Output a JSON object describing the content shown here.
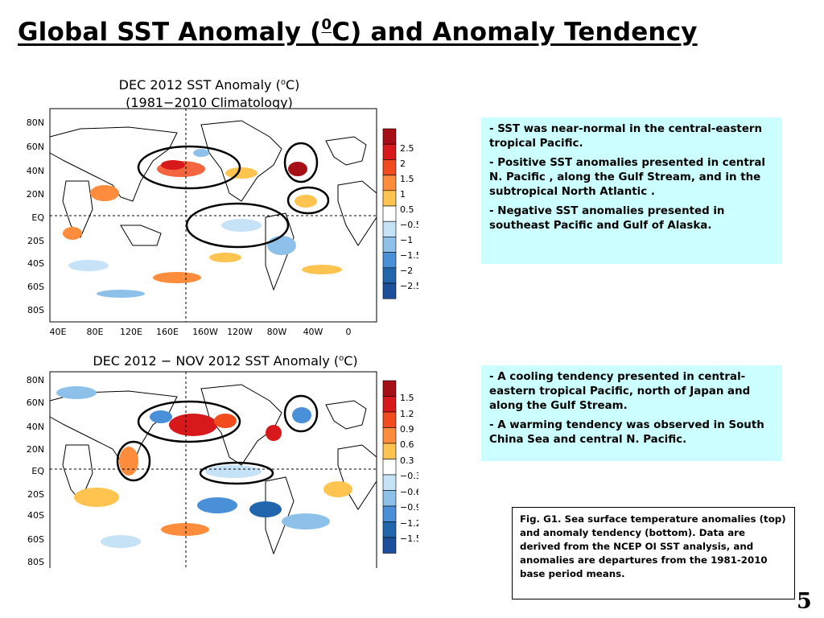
{
  "slide": {
    "title_part1": "Global SST Anomaly (",
    "title_superscript": "0",
    "title_part2": "C) and Anomaly Tendency",
    "page_number": "5"
  },
  "top_map": {
    "title_line1_prefix": "DEC 2012 SST Anomaly (",
    "title_line1_sup": "o",
    "title_line1_suffix": "C)",
    "title_line2": "(1981−2010 Climatology)",
    "lat_labels": [
      "80N",
      "60N",
      "40N",
      "20N",
      "EQ",
      "20S",
      "40S",
      "60S",
      "80S"
    ],
    "lon_labels": [
      "40E",
      "80E",
      "120E",
      "160E",
      "160W",
      "120W",
      "80W",
      "40W",
      "0"
    ],
    "colorbar_labels": [
      "2.5",
      "2",
      "1.5",
      "1",
      "0.5",
      "−0.5",
      "−1",
      "−1.5",
      "−2",
      "−2.5"
    ],
    "colorbar_colors": [
      "#a50f15",
      "#d7191c",
      "#f24b1d",
      "#fd8d3c",
      "#fec44f",
      "#ffffff",
      "#c6e2f7",
      "#8ec1ea",
      "#4a90d9",
      "#2166ac",
      "#1c4f9c"
    ]
  },
  "bottom_map": {
    "title_prefix": "DEC 2012 − NOV 2012 SST Anomaly (",
    "title_sup": "o",
    "title_suffix": "C)",
    "lat_labels": [
      "80N",
      "60N",
      "40N",
      "20N",
      "EQ",
      "20S",
      "40S",
      "60S",
      "80S"
    ],
    "colorbar_labels": [
      "1.5",
      "1.2",
      "0.9",
      "0.6",
      "0.3",
      "−0.3",
      "−0.6",
      "−0.9",
      "−1.2",
      "−1.5"
    ],
    "colorbar_colors": [
      "#a50f15",
      "#d7191c",
      "#f24b1d",
      "#fd8d3c",
      "#fec44f",
      "#ffffff",
      "#c6e2f7",
      "#8ec1ea",
      "#4a90d9",
      "#2166ac",
      "#1c4f9c"
    ]
  },
  "top_notes": [
    "SST was near-normal in the central-eastern tropical Pacific.",
    "Positive SST anomalies presented in central N. Pacific , along the Gulf Stream,  and  in the subtropical North Atlantic .",
    "Negative SST anomalies presented in southeast Pacific and Gulf of Alaska."
  ],
  "bottom_notes": [
    "A cooling tendency presented in central-eastern tropical Pacific, north of Japan and along the Gulf Stream.",
    "A warming tendency was observed in South China Sea and central N. Pacific."
  ],
  "caption": "Fig. G1. Sea surface temperature anomalies (top) and anomaly tendency (bottom). Data are derived from the NCEP OI SST analysis, and anomalies are departures from the 1981-2010 base period means.",
  "note_prefix": "- "
}
